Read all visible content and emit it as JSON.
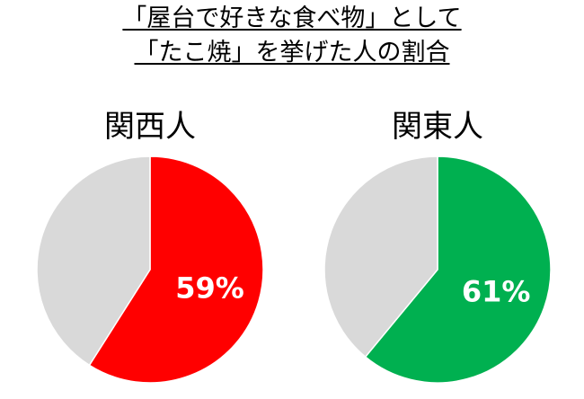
{
  "chart_data": [
    {
      "type": "pie",
      "title": "関西人",
      "slices": [
        {
          "label": "59%",
          "value": 59,
          "color": "#FF0000"
        },
        {
          "value": 41,
          "color": "#D9D9D9"
        }
      ]
    },
    {
      "type": "pie",
      "title": "関東人",
      "slices": [
        {
          "label": "61%",
          "value": 61,
          "color": "#00B050"
        },
        {
          "value": 39,
          "color": "#D9D9D9"
        }
      ]
    }
  ],
  "header": {
    "line1": "「屋台で好きな食べ物」として",
    "line2": "「たこ焼」を挙げた人の割合"
  }
}
